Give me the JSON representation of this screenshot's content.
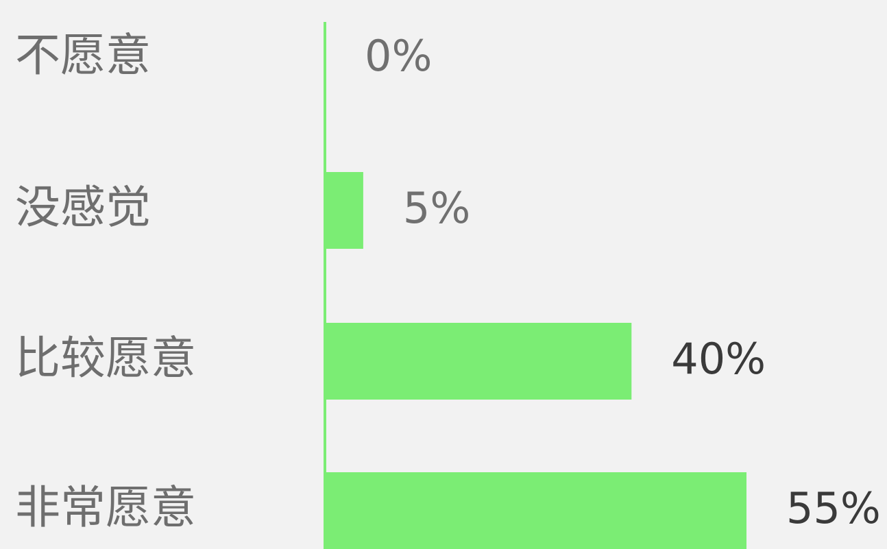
{
  "chart_data": {
    "type": "bar",
    "orientation": "horizontal",
    "categories": [
      "不愿意",
      "没感觉",
      "比较愿意",
      "非常愿意"
    ],
    "values": [
      0,
      5,
      40,
      55
    ],
    "value_labels": [
      "0%",
      "5%",
      "40%",
      "55%"
    ],
    "color": "#7bed74"
  }
}
